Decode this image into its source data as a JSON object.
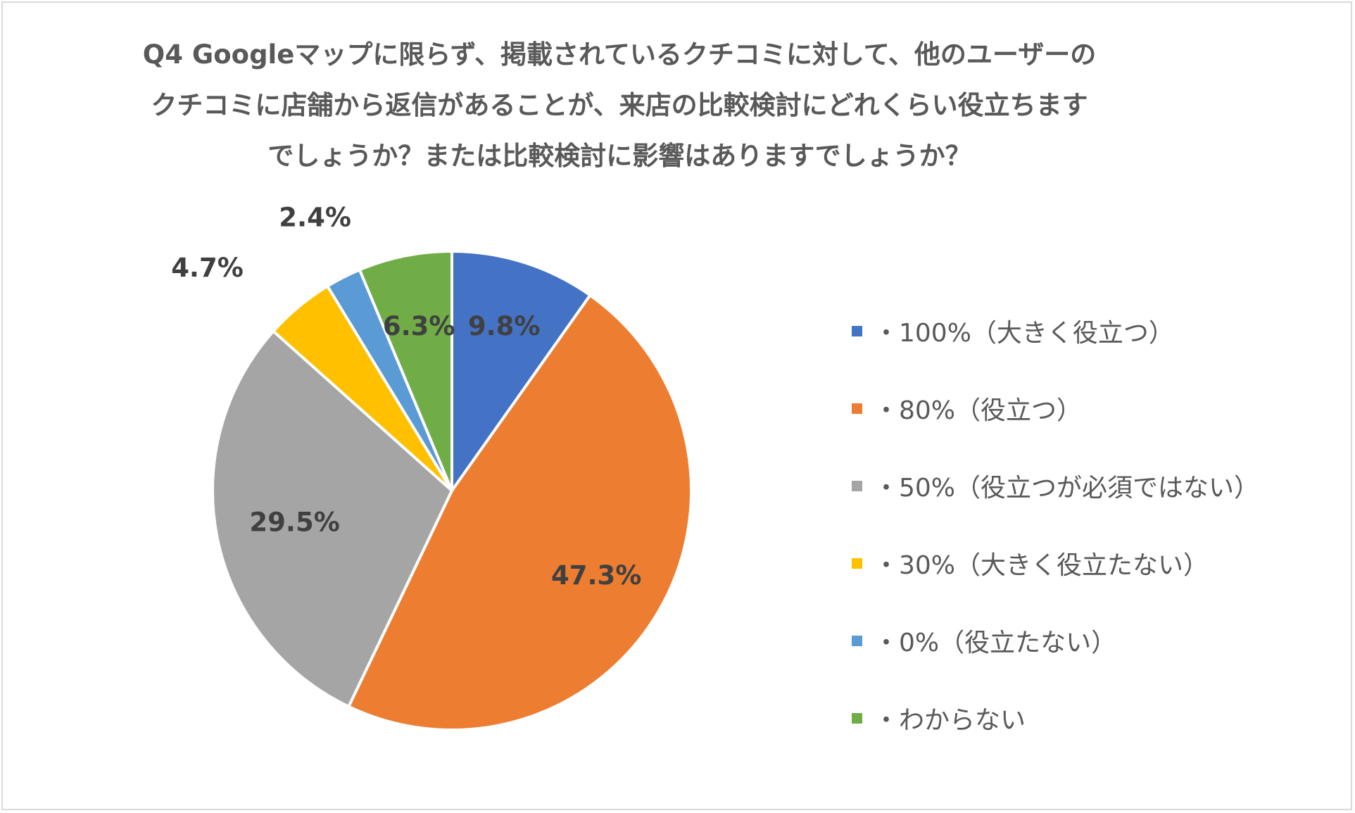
{
  "chart_data": {
    "type": "pie",
    "title_lines": [
      "Q4 Googleマップに限らず、掲載されているクチコミに対して、他のユーザーの",
      "クチコミに店舗から返信があることが、来店の比較検討にどれくらい役立ちます",
      "でしょうか？または比較検討に影響はありますでしょうか？"
    ],
    "slices": [
      {
        "label": "・100%（大きく役立つ）",
        "value": 9.8,
        "value_label": "9.8%",
        "color": "#4472C4"
      },
      {
        "label": "・80%（役立つ）",
        "value": 47.3,
        "value_label": "47.3%",
        "color": "#ED7D31"
      },
      {
        "label": "・50%（役立つが必須ではない）",
        "value": 29.5,
        "value_label": "29.5%",
        "color": "#A5A5A5"
      },
      {
        "label": "・30%（大きく役立たない）",
        "value": 4.7,
        "value_label": "4.7%",
        "color": "#FFC000"
      },
      {
        "label": "・0%（役立たない）",
        "value": 2.4,
        "value_label": "2.4%",
        "color": "#5B9BD5"
      },
      {
        "label": "・わからない",
        "value": 6.3,
        "value_label": "6.3%",
        "color": "#70AD47"
      }
    ],
    "start_angle": "12 o'clock",
    "direction": "clockwise",
    "legend_position": "right"
  }
}
